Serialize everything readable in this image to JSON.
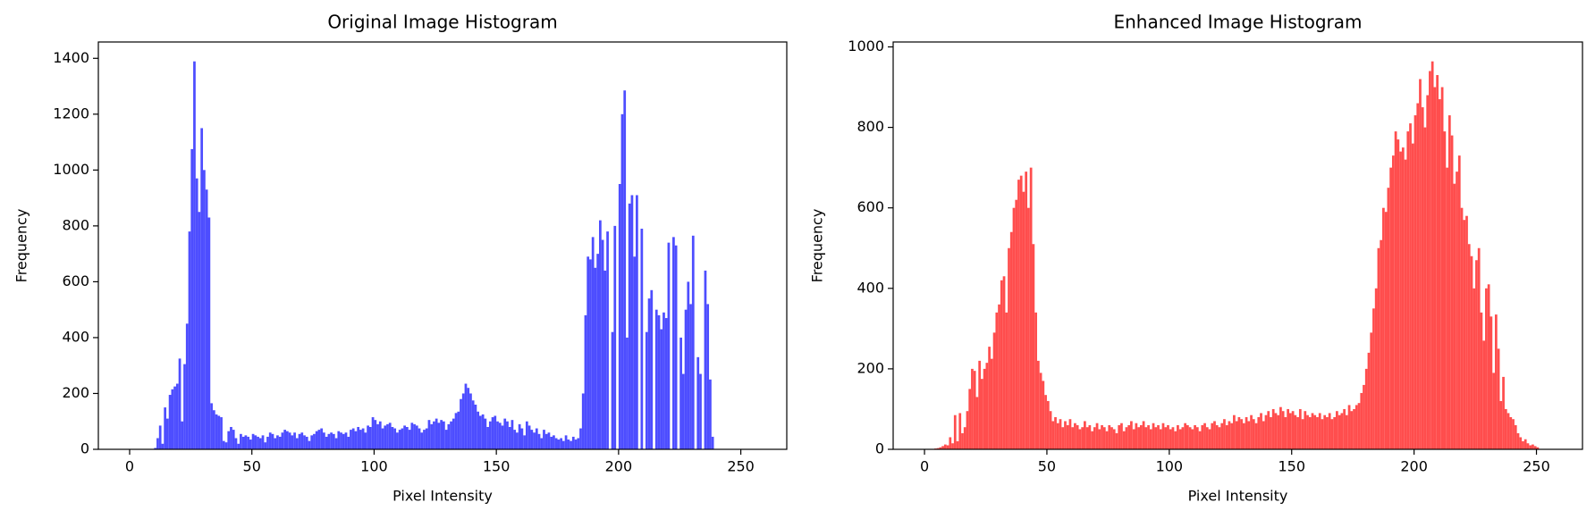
{
  "chart_data": [
    {
      "type": "histogram",
      "title": "Original Image Histogram",
      "xlabel": "Pixel Intensity",
      "ylabel": "Frequency",
      "color": "#4d4dff",
      "bins": [
        0,
        1,
        2,
        3,
        4,
        5,
        6,
        7,
        8,
        9,
        10,
        11,
        12,
        13,
        14,
        15,
        16,
        17,
        18,
        19,
        20,
        21,
        22,
        23,
        24,
        25,
        26,
        27,
        28,
        29,
        30,
        31,
        32,
        33,
        34,
        35,
        36,
        37,
        38,
        39,
        40,
        41,
        42,
        43,
        44,
        45,
        46,
        47,
        48,
        49,
        50,
        51,
        52,
        53,
        54,
        55,
        56,
        57,
        58,
        59,
        60,
        61,
        62,
        63,
        64,
        65,
        66,
        67,
        68,
        69,
        70,
        71,
        72,
        73,
        74,
        75,
        76,
        77,
        78,
        79,
        80,
        81,
        82,
        83,
        84,
        85,
        86,
        87,
        88,
        89,
        90,
        91,
        92,
        93,
        94,
        95,
        96,
        97,
        98,
        99,
        100,
        101,
        102,
        103,
        104,
        105,
        106,
        107,
        108,
        109,
        110,
        111,
        112,
        113,
        114,
        115,
        116,
        117,
        118,
        119,
        120,
        121,
        122,
        123,
        124,
        125,
        126,
        127,
        128,
        129,
        130,
        131,
        132,
        133,
        134,
        135,
        136,
        137,
        138,
        139,
        140,
        141,
        142,
        143,
        144,
        145,
        146,
        147,
        148,
        149,
        150,
        151,
        152,
        153,
        154,
        155,
        156,
        157,
        158,
        159,
        160,
        161,
        162,
        163,
        164,
        165,
        166,
        167,
        168,
        169,
        170,
        171,
        172,
        173,
        174,
        175,
        176,
        177,
        178,
        179,
        180,
        181,
        182,
        183,
        184,
        185,
        186,
        187,
        188,
        189,
        190,
        191,
        192,
        193,
        194,
        195,
        196,
        197,
        198,
        199,
        200,
        201,
        202,
        203,
        204,
        205,
        206,
        207,
        208,
        209,
        210,
        211,
        212,
        213,
        214,
        215,
        216,
        217,
        218,
        219,
        220,
        221,
        222,
        223,
        224,
        225,
        226,
        227,
        228,
        229,
        230,
        231,
        232,
        233,
        234,
        235,
        236,
        237,
        238,
        239,
        240,
        241,
        242,
        243,
        244,
        245,
        246,
        247,
        248,
        249,
        250,
        251,
        252,
        253,
        254,
        255,
        256
      ],
      "counts": [
        0,
        0,
        0,
        0,
        0,
        0,
        0,
        0,
        0,
        0,
        5,
        40,
        85,
        20,
        150,
        110,
        195,
        215,
        225,
        235,
        325,
        100,
        305,
        450,
        780,
        1075,
        1389,
        970,
        850,
        1150,
        1000,
        930,
        830,
        165,
        140,
        125,
        120,
        115,
        30,
        25,
        65,
        80,
        70,
        40,
        20,
        55,
        45,
        50,
        45,
        35,
        55,
        50,
        45,
        40,
        50,
        25,
        45,
        60,
        55,
        40,
        50,
        45,
        60,
        70,
        65,
        60,
        50,
        60,
        40,
        55,
        60,
        50,
        45,
        30,
        50,
        55,
        65,
        70,
        75,
        60,
        45,
        55,
        60,
        55,
        40,
        65,
        60,
        55,
        60,
        45,
        70,
        75,
        65,
        80,
        70,
        75,
        60,
        85,
        80,
        115,
        105,
        90,
        100,
        75,
        85,
        90,
        95,
        80,
        75,
        60,
        70,
        75,
        85,
        80,
        70,
        95,
        90,
        85,
        75,
        60,
        70,
        75,
        105,
        90,
        100,
        110,
        95,
        105,
        100,
        70,
        90,
        100,
        110,
        130,
        135,
        180,
        200,
        235,
        220,
        200,
        175,
        160,
        135,
        120,
        125,
        110,
        80,
        100,
        115,
        120,
        100,
        95,
        85,
        110,
        100,
        80,
        105,
        70,
        60,
        90,
        75,
        50,
        100,
        85,
        70,
        60,
        75,
        55,
        40,
        70,
        55,
        60,
        45,
        50,
        40,
        35,
        40,
        30,
        50,
        35,
        30,
        45,
        35,
        40,
        75,
        200,
        480,
        690,
        680,
        760,
        650,
        700,
        820,
        750,
        640,
        780,
        0,
        420,
        800,
        0,
        950,
        1200,
        1285,
        400,
        880,
        910,
        690,
        910,
        0,
        790,
        0,
        420,
        540,
        570,
        0,
        500,
        480,
        430,
        490,
        470,
        740,
        0,
        760,
        730,
        0,
        400,
        270,
        500,
        600,
        520,
        765,
        0,
        330,
        270,
        0,
        640,
        520,
        250,
        45,
        0,
        0,
        0,
        0,
        0,
        0,
        0,
        0,
        0,
        0,
        0,
        0,
        0,
        0,
        0,
        0,
        0
      ],
      "xlim": [
        -12.8,
        268.8
      ],
      "ylim": [
        0,
        1458.5
      ],
      "xticks": [
        0,
        50,
        100,
        150,
        200,
        250
      ],
      "yticks": [
        0,
        200,
        400,
        600,
        800,
        1000,
        1200,
        1400
      ]
    },
    {
      "type": "histogram",
      "title": "Enhanced Image Histogram",
      "xlabel": "Pixel Intensity",
      "ylabel": "Frequency",
      "color": "#ff4d4d",
      "bins": [
        0,
        1,
        2,
        3,
        4,
        5,
        6,
        7,
        8,
        9,
        10,
        11,
        12,
        13,
        14,
        15,
        16,
        17,
        18,
        19,
        20,
        21,
        22,
        23,
        24,
        25,
        26,
        27,
        28,
        29,
        30,
        31,
        32,
        33,
        34,
        35,
        36,
        37,
        38,
        39,
        40,
        41,
        42,
        43,
        44,
        45,
        46,
        47,
        48,
        49,
        50,
        51,
        52,
        53,
        54,
        55,
        56,
        57,
        58,
        59,
        60,
        61,
        62,
        63,
        64,
        65,
        66,
        67,
        68,
        69,
        70,
        71,
        72,
        73,
        74,
        75,
        76,
        77,
        78,
        79,
        80,
        81,
        82,
        83,
        84,
        85,
        86,
        87,
        88,
        89,
        90,
        91,
        92,
        93,
        94,
        95,
        96,
        97,
        98,
        99,
        100,
        101,
        102,
        103,
        104,
        105,
        106,
        107,
        108,
        109,
        110,
        111,
        112,
        113,
        114,
        115,
        116,
        117,
        118,
        119,
        120,
        121,
        122,
        123,
        124,
        125,
        126,
        127,
        128,
        129,
        130,
        131,
        132,
        133,
        134,
        135,
        136,
        137,
        138,
        139,
        140,
        141,
        142,
        143,
        144,
        145,
        146,
        147,
        148,
        149,
        150,
        151,
        152,
        153,
        154,
        155,
        156,
        157,
        158,
        159,
        160,
        161,
        162,
        163,
        164,
        165,
        166,
        167,
        168,
        169,
        170,
        171,
        172,
        173,
        174,
        175,
        176,
        177,
        178,
        179,
        180,
        181,
        182,
        183,
        184,
        185,
        186,
        187,
        188,
        189,
        190,
        191,
        192,
        193,
        194,
        195,
        196,
        197,
        198,
        199,
        200,
        201,
        202,
        203,
        204,
        205,
        206,
        207,
        208,
        209,
        210,
        211,
        212,
        213,
        214,
        215,
        216,
        217,
        218,
        219,
        220,
        221,
        222,
        223,
        224,
        225,
        226,
        227,
        228,
        229,
        230,
        231,
        232,
        233,
        234,
        235,
        236,
        237,
        238,
        239,
        240,
        241,
        242,
        243,
        244,
        245,
        246,
        247,
        248,
        249,
        250,
        251,
        252,
        253,
        254,
        255,
        256
      ],
      "counts": [
        0,
        0,
        0,
        0,
        2,
        3,
        5,
        8,
        12,
        10,
        30,
        15,
        85,
        20,
        90,
        40,
        55,
        95,
        150,
        200,
        195,
        130,
        220,
        175,
        200,
        215,
        255,
        225,
        290,
        340,
        360,
        420,
        430,
        340,
        500,
        540,
        600,
        620,
        670,
        680,
        640,
        690,
        600,
        700,
        510,
        340,
        220,
        190,
        170,
        135,
        120,
        95,
        70,
        80,
        65,
        75,
        55,
        70,
        60,
        75,
        55,
        65,
        60,
        50,
        55,
        70,
        55,
        60,
        45,
        55,
        65,
        50,
        60,
        55,
        45,
        60,
        55,
        50,
        40,
        60,
        65,
        45,
        55,
        60,
        70,
        50,
        65,
        55,
        60,
        70,
        55,
        60,
        50,
        65,
        55,
        60,
        50,
        65,
        55,
        60,
        50,
        55,
        45,
        60,
        50,
        55,
        65,
        60,
        55,
        50,
        60,
        55,
        45,
        60,
        65,
        55,
        50,
        65,
        70,
        60,
        55,
        65,
        75,
        60,
        70,
        65,
        85,
        70,
        80,
        75,
        65,
        80,
        70,
        85,
        75,
        65,
        80,
        90,
        70,
        85,
        95,
        80,
        100,
        90,
        85,
        105,
        95,
        80,
        100,
        90,
        95,
        85,
        80,
        100,
        75,
        95,
        85,
        80,
        90,
        85,
        80,
        90,
        75,
        85,
        80,
        90,
        75,
        80,
        95,
        85,
        90,
        100,
        85,
        110,
        95,
        100,
        110,
        115,
        140,
        160,
        200,
        240,
        290,
        350,
        400,
        500,
        520,
        600,
        590,
        650,
        700,
        730,
        790,
        770,
        740,
        750,
        720,
        790,
        810,
        760,
        830,
        860,
        920,
        850,
        800,
        880,
        940,
        964,
        900,
        930,
        870,
        900,
        790,
        700,
        830,
        780,
        660,
        690,
        730,
        600,
        570,
        580,
        510,
        480,
        400,
        470,
        500,
        340,
        270,
        400,
        410,
        330,
        190,
        335,
        250,
        120,
        180,
        100,
        90,
        80,
        75,
        60,
        40,
        30,
        20,
        25,
        15,
        10,
        12,
        8,
        5,
        0,
        0,
        0,
        0,
        0
      ],
      "xlim": [
        -12.8,
        268.8
      ],
      "ylim": [
        0,
        1012.2
      ],
      "xticks": [
        0,
        50,
        100,
        150,
        200,
        250
      ],
      "yticks": [
        0,
        200,
        400,
        600,
        800,
        1000
      ]
    }
  ]
}
